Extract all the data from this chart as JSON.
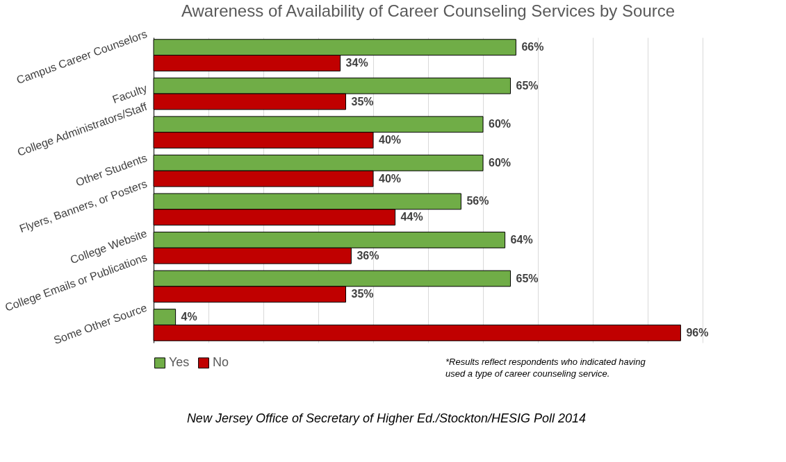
{
  "chart_data": {
    "type": "bar",
    "orientation": "horizontal",
    "title": "Awareness of Availability of Career Counseling Services by Source",
    "categories": [
      "Campus Career Counselors",
      "Faculty",
      "College Administrators/Staff",
      "Other Students",
      "Flyers, Banners, or Posters",
      "College Website",
      "College Emails or Publications",
      "Some Other Source"
    ],
    "series": [
      {
        "name": "Yes",
        "color": "#70ad47",
        "values": [
          66,
          65,
          60,
          60,
          56,
          64,
          65,
          4
        ],
        "value_labels": [
          "66%",
          "65%",
          "60%",
          "60%",
          "56%",
          "64%",
          "65%",
          "4%"
        ]
      },
      {
        "name": "No",
        "color": "#c00000",
        "values": [
          34,
          35,
          40,
          40,
          44,
          36,
          35,
          96
        ],
        "value_labels": [
          "34%",
          "35%",
          "40%",
          "40%",
          "44%",
          "36%",
          "35%",
          "96%"
        ]
      }
    ],
    "grid": "x",
    "tick_labels": "y",
    "legend": "bottom",
    "annotations": [
      "*Results reflect respondents who indicated having used a type of career counseling service.",
      "New Jersey Office of Secretary of Higher Ed./Stockton/HESIG Poll 2014"
    ]
  }
}
